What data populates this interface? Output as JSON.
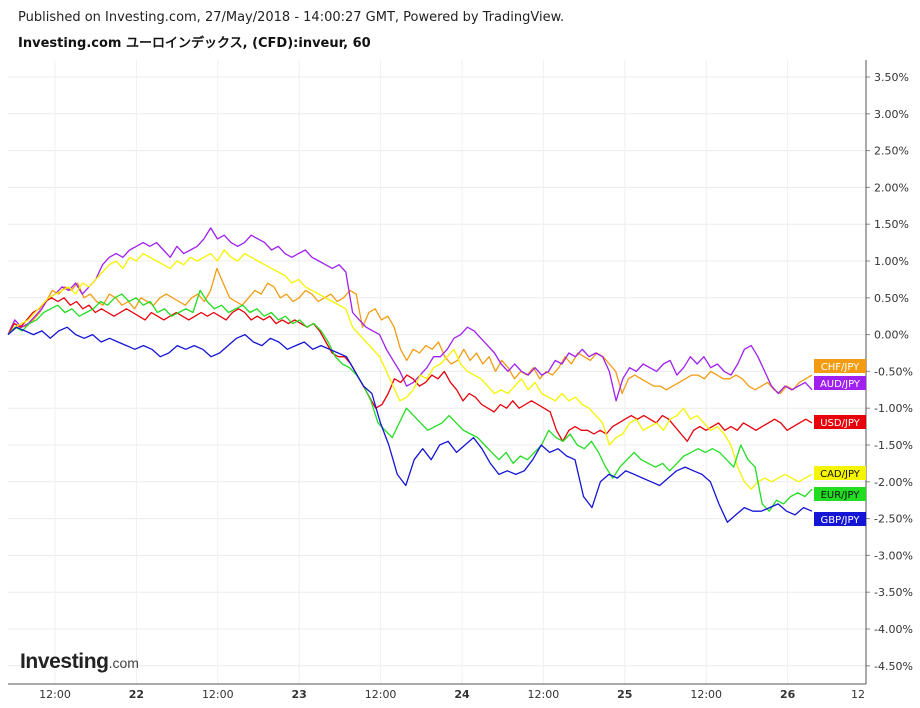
{
  "header": {
    "published": "Published on Investing.com, 27/May/2018 - 14:00:27 GMT, Powered by TradingView.",
    "title": "Investing.com ユーロインデックス, (CFD):inveur, 60"
  },
  "logo": {
    "main": "Investing",
    "suffix": ".com"
  },
  "chart_data": {
    "type": "line",
    "xlabel": "",
    "ylabel": "",
    "x_ticks": [
      "12:00",
      "22",
      "12:00",
      "23",
      "12:00",
      "24",
      "12:00",
      "25",
      "12:00",
      "26",
      "12"
    ],
    "y_ticks": [
      "3.50%",
      "3.00%",
      "2.50%",
      "2.00%",
      "1.50%",
      "1.00%",
      "0.50%",
      "0.00%",
      "-0.50%",
      "-1.00%",
      "-1.50%",
      "-2.00%",
      "-2.50%",
      "-3.00%",
      "-3.50%",
      "-4.00%",
      "-4.50%"
    ],
    "ylim": [
      -4.75,
      3.75
    ],
    "grid": true,
    "legend": "right-axis labels",
    "series": [
      {
        "name": "CHF/JPY",
        "color": "#f39c12",
        "last_label": "CHF/JPY",
        "values": [
          0,
          0.15,
          0.1,
          0.12,
          0.2,
          0.3,
          0.45,
          0.6,
          0.55,
          0.65,
          0.6,
          0.7,
          0.5,
          0.55,
          0.45,
          0.4,
          0.55,
          0.5,
          0.4,
          0.45,
          0.35,
          0.5,
          0.45,
          0.4,
          0.5,
          0.55,
          0.5,
          0.45,
          0.4,
          0.5,
          0.55,
          0.45,
          0.6,
          0.9,
          0.7,
          0.5,
          0.45,
          0.4,
          0.5,
          0.6,
          0.55,
          0.7,
          0.65,
          0.5,
          0.55,
          0.45,
          0.5,
          0.6,
          0.55,
          0.45,
          0.5,
          0.55,
          0.45,
          0.5,
          0.6,
          0.55,
          0.1,
          0.3,
          0.35,
          0.2,
          0.25,
          0.1,
          -0.2,
          -0.35,
          -0.2,
          -0.25,
          -0.15,
          -0.2,
          -0.1,
          -0.3,
          -0.4,
          -0.35,
          -0.2,
          -0.35,
          -0.25,
          -0.4,
          -0.3,
          -0.5,
          -0.35,
          -0.45,
          -0.6,
          -0.5,
          -0.55,
          -0.45,
          -0.6,
          -0.5,
          -0.55,
          -0.45,
          -0.3,
          -0.4,
          -0.25,
          -0.3,
          -0.35,
          -0.25,
          -0.3,
          -0.4,
          -0.5,
          -0.8,
          -0.6,
          -0.55,
          -0.6,
          -0.65,
          -0.7,
          -0.7,
          -0.75,
          -0.7,
          -0.65,
          -0.6,
          -0.55,
          -0.55,
          -0.6,
          -0.5,
          -0.55,
          -0.6,
          -0.6,
          -0.55,
          -0.6,
          -0.7,
          -0.75,
          -0.7,
          -0.65,
          -0.75,
          -0.8,
          -0.7,
          -0.75,
          -0.65,
          -0.6,
          -0.55
        ]
      },
      {
        "name": "AUD/JPY",
        "color": "#a020f0",
        "last_label": "AUD/JPY",
        "values": [
          0,
          0.2,
          0.1,
          0.15,
          0.25,
          0.35,
          0.5,
          0.55,
          0.65,
          0.6,
          0.7,
          0.55,
          0.65,
          0.75,
          0.95,
          1.05,
          1.1,
          1.05,
          1.15,
          1.2,
          1.25,
          1.2,
          1.25,
          1.15,
          1.05,
          1.2,
          1.1,
          1.15,
          1.2,
          1.3,
          1.45,
          1.3,
          1.35,
          1.25,
          1.2,
          1.25,
          1.35,
          1.3,
          1.25,
          1.15,
          1.2,
          1.1,
          1.05,
          1.1,
          1.15,
          1.05,
          1.0,
          0.95,
          0.9,
          0.95,
          0.85,
          0.3,
          0.2,
          0.1,
          0.05,
          0.0,
          -0.2,
          -0.35,
          -0.5,
          -0.7,
          -0.65,
          -0.55,
          -0.45,
          -0.3,
          -0.3,
          -0.2,
          -0.05,
          0.0,
          0.1,
          0.05,
          -0.05,
          -0.15,
          -0.25,
          -0.4,
          -0.5,
          -0.4,
          -0.5,
          -0.55,
          -0.45,
          -0.55,
          -0.5,
          -0.35,
          -0.4,
          -0.25,
          -0.3,
          -0.2,
          -0.3,
          -0.25,
          -0.3,
          -0.5,
          -0.9,
          -0.6,
          -0.45,
          -0.5,
          -0.4,
          -0.45,
          -0.5,
          -0.4,
          -0.35,
          -0.55,
          -0.45,
          -0.3,
          -0.4,
          -0.3,
          -0.45,
          -0.4,
          -0.5,
          -0.55,
          -0.4,
          -0.2,
          -0.15,
          -0.3,
          -0.5,
          -0.7,
          -0.8,
          -0.7,
          -0.75,
          -0.7,
          -0.65,
          -0.75
        ]
      },
      {
        "name": "USD/JPY",
        "color": "#e8000b",
        "last_label": "USD/JPY",
        "values": [
          0,
          0.15,
          0.1,
          0.2,
          0.3,
          0.35,
          0.45,
          0.5,
          0.45,
          0.5,
          0.4,
          0.45,
          0.35,
          0.4,
          0.3,
          0.35,
          0.3,
          0.25,
          0.3,
          0.35,
          0.3,
          0.25,
          0.2,
          0.3,
          0.25,
          0.2,
          0.25,
          0.3,
          0.25,
          0.2,
          0.25,
          0.3,
          0.25,
          0.3,
          0.25,
          0.2,
          0.3,
          0.35,
          0.3,
          0.2,
          0.25,
          0.2,
          0.25,
          0.15,
          0.2,
          0.15,
          0.2,
          0.15,
          0.1,
          0.15,
          0.05,
          -0.1,
          -0.25,
          -0.3,
          -0.3,
          -0.4,
          -0.55,
          -0.7,
          -0.85,
          -1.0,
          -0.95,
          -0.8,
          -0.6,
          -0.65,
          -0.55,
          -0.6,
          -0.7,
          -0.65,
          -0.55,
          -0.6,
          -0.5,
          -0.65,
          -0.75,
          -0.9,
          -0.8,
          -0.85,
          -0.95,
          -1.0,
          -1.05,
          -0.95,
          -1.0,
          -0.9,
          -1.0,
          -0.95,
          -0.9,
          -0.95,
          -1.0,
          -1.05,
          -1.3,
          -1.45,
          -1.3,
          -1.25,
          -1.3,
          -1.3,
          -1.35,
          -1.3,
          -1.35,
          -1.25,
          -1.2,
          -1.15,
          -1.1,
          -1.15,
          -1.1,
          -1.15,
          -1.2,
          -1.1,
          -1.15,
          -1.25,
          -1.35,
          -1.45,
          -1.3,
          -1.25,
          -1.3,
          -1.25,
          -1.2,
          -1.3,
          -1.25,
          -1.3,
          -1.2,
          -1.25,
          -1.3,
          -1.25,
          -1.2,
          -1.15,
          -1.2,
          -1.3,
          -1.25,
          -1.2,
          -1.15,
          -1.2
        ]
      },
      {
        "name": "CAD/JPY",
        "color": "#f5f500",
        "last_label": "CAD/JPY",
        "values": [
          0,
          0.1,
          0.15,
          0.2,
          0.3,
          0.4,
          0.5,
          0.55,
          0.6,
          0.65,
          0.55,
          0.7,
          0.65,
          0.75,
          0.85,
          0.95,
          1.0,
          0.9,
          1.05,
          1.0,
          1.1,
          1.05,
          1.0,
          0.95,
          0.9,
          1.0,
          0.95,
          1.05,
          1.0,
          1.05,
          1.1,
          1.0,
          1.15,
          1.05,
          1.0,
          1.1,
          1.05,
          1.0,
          0.95,
          0.9,
          0.85,
          0.8,
          0.7,
          0.75,
          0.65,
          0.6,
          0.55,
          0.5,
          0.45,
          0.4,
          0.35,
          0.1,
          0.0,
          -0.1,
          -0.2,
          -0.3,
          -0.5,
          -0.7,
          -0.9,
          -0.85,
          -0.75,
          -0.55,
          -0.6,
          -0.45,
          -0.4,
          -0.3,
          -0.2,
          -0.4,
          -0.5,
          -0.55,
          -0.6,
          -0.7,
          -0.8,
          -0.75,
          -0.8,
          -0.7,
          -0.6,
          -0.75,
          -0.65,
          -0.8,
          -0.85,
          -0.9,
          -0.8,
          -0.9,
          -0.85,
          -0.95,
          -1.0,
          -1.1,
          -1.2,
          -1.5,
          -1.4,
          -1.35,
          -1.2,
          -1.15,
          -1.3,
          -1.25,
          -1.2,
          -1.3,
          -1.15,
          -1.1,
          -1.0,
          -1.15,
          -1.1,
          -1.2,
          -1.3,
          -1.25,
          -1.35,
          -1.5,
          -1.8,
          -2.0,
          -2.1,
          -2.0,
          -1.95,
          -2.0,
          -1.95,
          -1.9,
          -1.95,
          -2.0,
          -1.95,
          -1.9
        ]
      },
      {
        "name": "EUR/JPY",
        "color": "#22dd22",
        "last_label": "EUR/JPY",
        "values": [
          0,
          0.1,
          0.05,
          0.15,
          0.2,
          0.3,
          0.35,
          0.4,
          0.3,
          0.35,
          0.25,
          0.3,
          0.35,
          0.45,
          0.4,
          0.5,
          0.55,
          0.45,
          0.5,
          0.4,
          0.45,
          0.3,
          0.35,
          0.25,
          0.3,
          0.35,
          0.3,
          0.6,
          0.45,
          0.35,
          0.4,
          0.3,
          0.35,
          0.4,
          0.3,
          0.35,
          0.25,
          0.3,
          0.2,
          0.25,
          0.15,
          0.2,
          0.1,
          0.15,
          0.05,
          -0.1,
          -0.3,
          -0.4,
          -0.45,
          -0.55,
          -0.7,
          -0.9,
          -1.2,
          -1.3,
          -1.4,
          -1.2,
          -1.0,
          -1.1,
          -1.2,
          -1.3,
          -1.25,
          -1.2,
          -1.1,
          -1.2,
          -1.3,
          -1.35,
          -1.4,
          -1.5,
          -1.6,
          -1.7,
          -1.6,
          -1.75,
          -1.65,
          -1.7,
          -1.6,
          -1.5,
          -1.3,
          -1.4,
          -1.45,
          -1.35,
          -1.5,
          -1.55,
          -1.45,
          -1.6,
          -1.8,
          -1.95,
          -1.8,
          -1.7,
          -1.6,
          -1.7,
          -1.75,
          -1.8,
          -1.75,
          -1.85,
          -1.75,
          -1.65,
          -1.6,
          -1.55,
          -1.6,
          -1.55,
          -1.6,
          -1.7,
          -1.8,
          -1.5,
          -1.7,
          -1.8,
          -2.3,
          -2.4,
          -2.25,
          -2.3,
          -2.2,
          -2.15,
          -2.2,
          -2.1
        ]
      },
      {
        "name": "GBP/JPY",
        "color": "#1515d6",
        "last_label": "GBP/JPY",
        "values": [
          0,
          0.1,
          0.05,
          0.0,
          0.05,
          -0.05,
          0.05,
          0.1,
          0.0,
          -0.05,
          0.0,
          -0.1,
          -0.05,
          -0.1,
          -0.15,
          -0.2,
          -0.15,
          -0.2,
          -0.3,
          -0.25,
          -0.15,
          -0.2,
          -0.15,
          -0.2,
          -0.3,
          -0.25,
          -0.15,
          -0.05,
          0.0,
          -0.1,
          -0.15,
          -0.05,
          -0.1,
          -0.2,
          -0.15,
          -0.1,
          -0.2,
          -0.15,
          -0.2,
          -0.25,
          -0.3,
          -0.5,
          -0.7,
          -0.8,
          -1.2,
          -1.5,
          -1.9,
          -2.05,
          -1.7,
          -1.55,
          -1.7,
          -1.5,
          -1.45,
          -1.6,
          -1.5,
          -1.4,
          -1.55,
          -1.75,
          -1.9,
          -1.85,
          -1.9,
          -1.85,
          -1.7,
          -1.5,
          -1.6,
          -1.55,
          -1.65,
          -1.7,
          -2.2,
          -2.35,
          -2.0,
          -1.9,
          -1.95,
          -1.85,
          -1.9,
          -1.95,
          -2.0,
          -2.05,
          -1.95,
          -1.85,
          -1.8,
          -1.85,
          -1.9,
          -2.0,
          -2.3,
          -2.55,
          -2.45,
          -2.35,
          -2.4,
          -2.4,
          -2.35,
          -2.3,
          -2.4,
          -2.45,
          -2.35,
          -2.4
        ]
      }
    ]
  }
}
